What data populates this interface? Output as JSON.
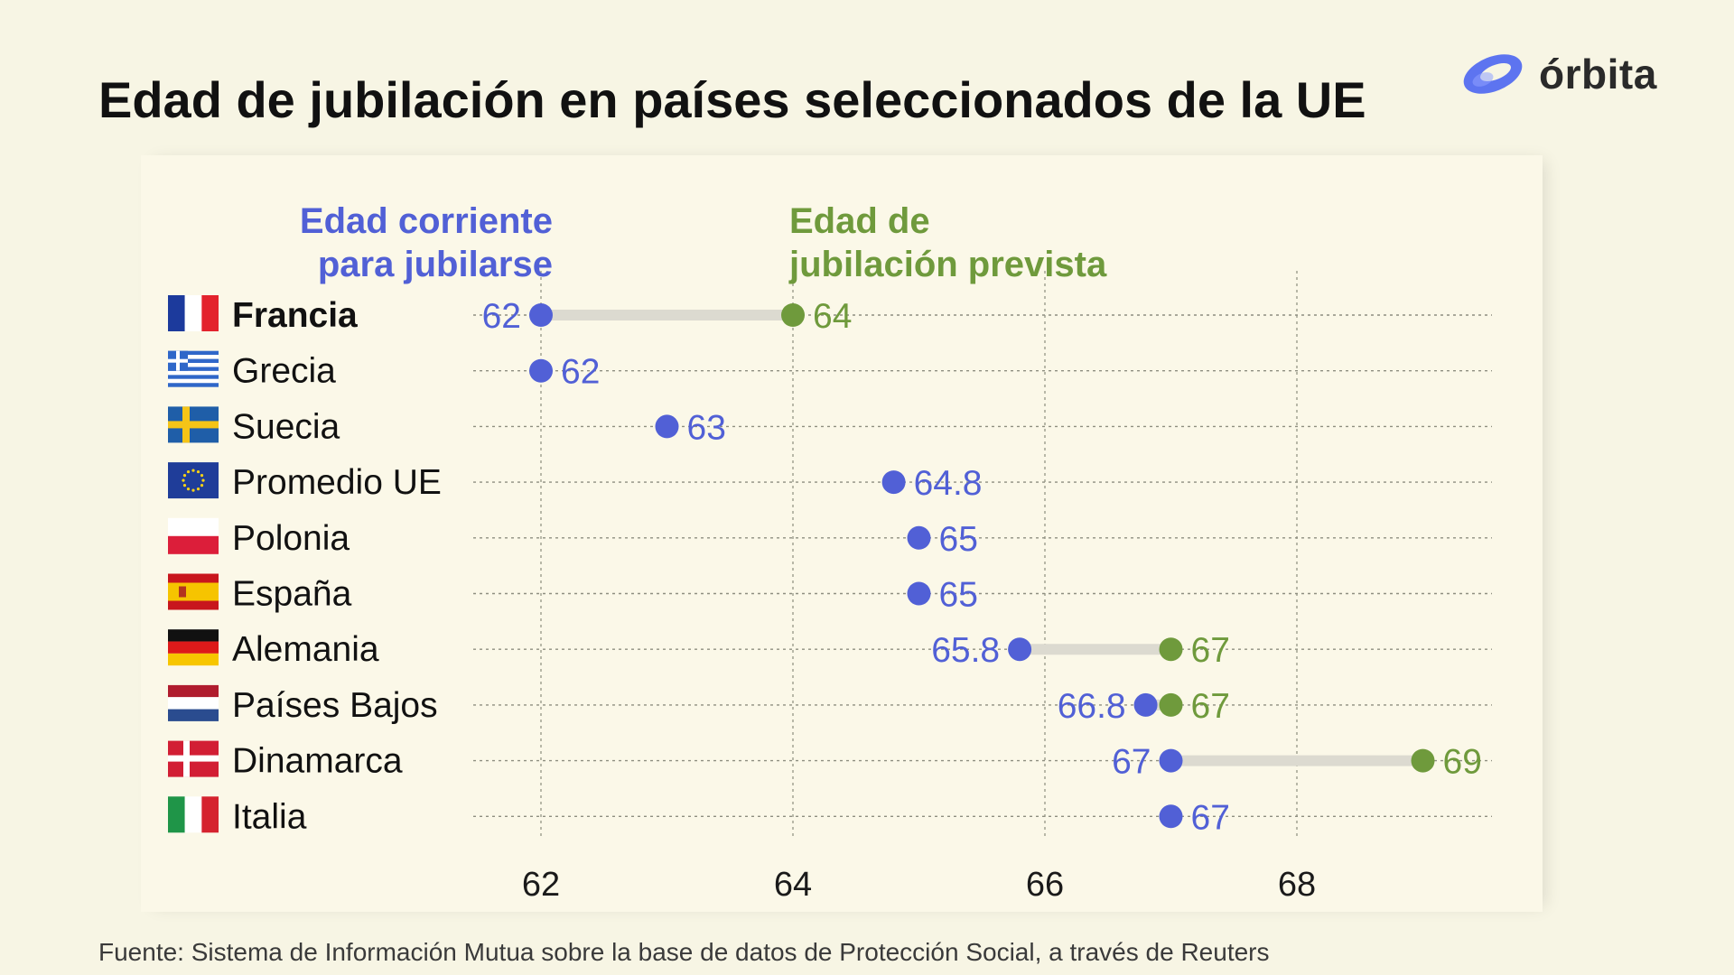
{
  "page": {
    "title": "Edad de jubilación en países seleccionados de la UE",
    "brand": "órbita",
    "source": "Fuente: Sistema de Información Mutua sobre la base de datos de Protección Social, a través de Reuters"
  },
  "colors": {
    "current": "#5160d6",
    "planned": "#6f9a3c",
    "background": "#f7f5e4",
    "panel": "#fbf8e8",
    "brand_accent": "#5d74f0"
  },
  "chart_data": {
    "type": "dumbbell",
    "title": "Edad de jubilación en países seleccionados de la UE",
    "legend": {
      "current": "Edad corriente para jubilarse",
      "current_lines": [
        "Edad corriente",
        "para jubilarse"
      ],
      "planned": "Edad de jubilación prevista",
      "planned_lines": [
        "Edad de",
        "jubilación prevista"
      ]
    },
    "xlim": [
      61.3,
      69.5
    ],
    "xticks": [
      62,
      64,
      66,
      68
    ],
    "xtick_labels": [
      "62",
      "64",
      "66",
      "68"
    ],
    "categories": [
      "Francia",
      "Grecia",
      "Suecia",
      "Promedio UE",
      "Polonia",
      "España",
      "Alemania",
      "Países Bajos",
      "Dinamarca",
      "Italia"
    ],
    "series": [
      {
        "name": "Edad corriente para jubilarse",
        "values": [
          62,
          62,
          63,
          64.8,
          65,
          65,
          65.8,
          66.8,
          67,
          67
        ],
        "labels": [
          "62",
          "62",
          "63",
          "64.8",
          "65",
          "65",
          "65.8",
          "66.8",
          "67",
          "67"
        ]
      },
      {
        "name": "Edad de jubilación prevista",
        "values": [
          64,
          null,
          null,
          null,
          null,
          null,
          67,
          67,
          69,
          null
        ],
        "labels": [
          "64",
          null,
          null,
          null,
          null,
          null,
          "67",
          "67",
          "69",
          null
        ]
      }
    ],
    "flags": [
      "fr-flag",
      "gr-flag",
      "se-flag",
      "eu-flag",
      "pl-flag",
      "es-flag",
      "de-flag",
      "nl-flag",
      "dk-flag",
      "it-flag"
    ]
  }
}
